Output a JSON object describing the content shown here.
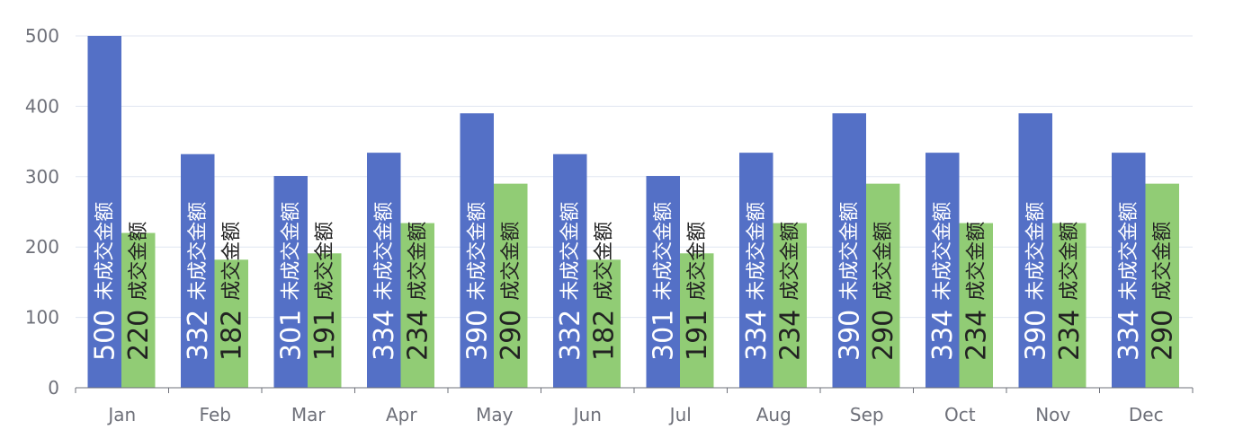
{
  "chart_data": {
    "type": "bar",
    "categories": [
      "Jan",
      "Feb",
      "Mar",
      "Apr",
      "May",
      "Jun",
      "Jul",
      "Aug",
      "Sep",
      "Oct",
      "Nov",
      "Dec"
    ],
    "series": [
      {
        "name": "未成交金额",
        "color": "#5470c6",
        "label_color": "#ffffff",
        "values": [
          500,
          332,
          301,
          334,
          390,
          332,
          301,
          334,
          390,
          334,
          390,
          334
        ]
      },
      {
        "name": "成交金额",
        "color": "#91cc75",
        "label_color": "#222222",
        "values": [
          220,
          182,
          191,
          234,
          290,
          182,
          191,
          234,
          290,
          234,
          234,
          290
        ]
      }
    ],
    "ylim": [
      0,
      500
    ],
    "yticks": [
      0,
      100,
      200,
      300,
      400,
      500
    ],
    "grid": true,
    "xlabel": "",
    "ylabel": ""
  }
}
